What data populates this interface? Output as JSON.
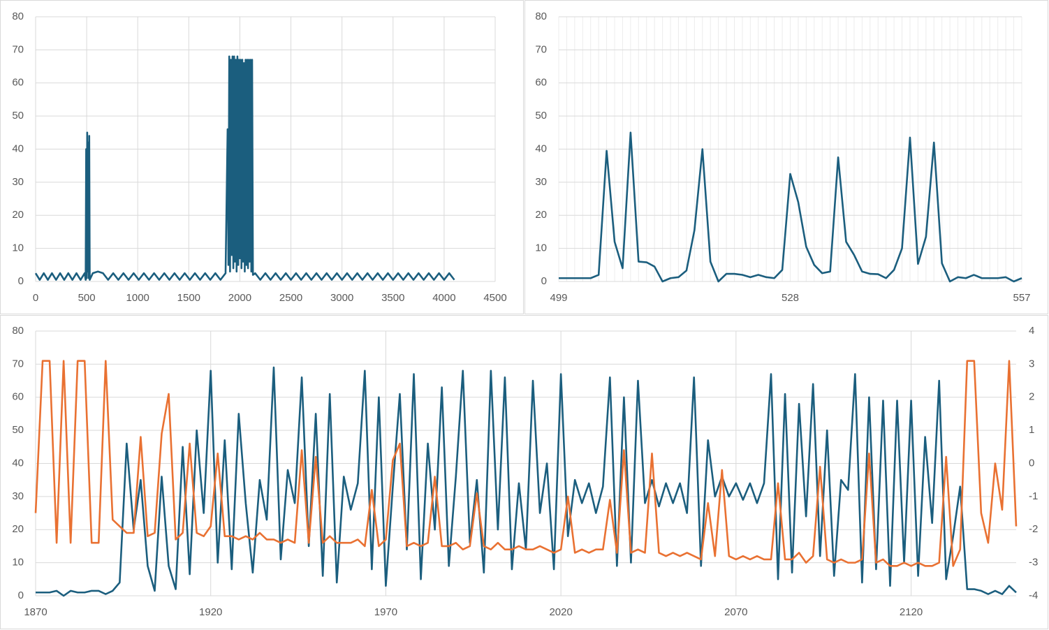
{
  "chart_data": [
    {
      "type": "line",
      "x": [
        0,
        40,
        80,
        120,
        160,
        200,
        240,
        280,
        320,
        360,
        400,
        440,
        480,
        490,
        495,
        500,
        505,
        510,
        515,
        520,
        525,
        530,
        560,
        610,
        660,
        710,
        760,
        810,
        860,
        910,
        960,
        1010,
        1060,
        1110,
        1160,
        1210,
        1260,
        1310,
        1360,
        1410,
        1460,
        1510,
        1560,
        1610,
        1660,
        1710,
        1760,
        1810,
        1860,
        1880,
        1888,
        1896,
        1904,
        1912,
        1920,
        1928,
        1936,
        1944,
        1952,
        1960,
        1968,
        1976,
        1984,
        1992,
        2000,
        2008,
        2016,
        2024,
        2032,
        2040,
        2048,
        2056,
        2064,
        2072,
        2080,
        2088,
        2096,
        2104,
        2112,
        2120,
        2128,
        2150,
        2200,
        2250,
        2300,
        2350,
        2400,
        2450,
        2500,
        2550,
        2600,
        2650,
        2700,
        2750,
        2800,
        2850,
        2900,
        2950,
        3000,
        3050,
        3100,
        3150,
        3200,
        3250,
        3300,
        3350,
        3400,
        3450,
        3500,
        3550,
        3600,
        3650,
        3700,
        3750,
        3800,
        3850,
        3900,
        3950,
        4000,
        4050,
        4100
      ],
      "series": [
        {
          "color": "#1b5e7e",
          "values": [
            2.5,
            0.5,
            2.5,
            0.5,
            2.5,
            0.5,
            2.5,
            0.5,
            2.5,
            0.5,
            2.5,
            0.5,
            2.5,
            0.5,
            40,
            1,
            45,
            3,
            42,
            1,
            44,
            0.5,
            2.5,
            3,
            2.5,
            0.5,
            2.5,
            0.5,
            2.5,
            0.5,
            2.5,
            0.5,
            2.5,
            0.5,
            2.5,
            0.5,
            2.5,
            0.5,
            2.5,
            0.5,
            2.5,
            0.5,
            2.5,
            0.5,
            2.5,
            0.5,
            2.5,
            0.5,
            2.5,
            46,
            5,
            68,
            3,
            67,
            8,
            68,
            4,
            68,
            6,
            67,
            3,
            68,
            5,
            67,
            7,
            67,
            4,
            67,
            6,
            66,
            3,
            67,
            5,
            67,
            4,
            67,
            6,
            67,
            3,
            67,
            2,
            2.5,
            0.5,
            2.5,
            0.5,
            2.5,
            0.5,
            2.5,
            0.5,
            2.5,
            0.5,
            2.5,
            0.5,
            2.5,
            0.5,
            2.5,
            0.5,
            2.5,
            0.5,
            2.5,
            0.5,
            2.5,
            0.5,
            2.5,
            0.5,
            2.5,
            0.5,
            2.5,
            0.5,
            2.5,
            0.5,
            2.5,
            0.5,
            2.5,
            0.5,
            2.5,
            0.5,
            2.5,
            0.5,
            2.5,
            0.5
          ]
        }
      ],
      "xlim": [
        0,
        4500
      ],
      "xticks": [
        0,
        500,
        1000,
        1500,
        2000,
        2500,
        3000,
        3500,
        4000,
        4500
      ],
      "ylim": [
        0,
        80
      ],
      "yticks": [
        0,
        10,
        20,
        30,
        40,
        50,
        60,
        70,
        80
      ],
      "grid": true
    },
    {
      "type": "line",
      "x": [
        499,
        500,
        501,
        502,
        503,
        504,
        505,
        506,
        507,
        508,
        509,
        510,
        511,
        512,
        513,
        514,
        515,
        516,
        517,
        518,
        519,
        520,
        521,
        522,
        523,
        524,
        525,
        526,
        527,
        528,
        529,
        530,
        531,
        532,
        533,
        534,
        535,
        536,
        537,
        538,
        539,
        540,
        541,
        542,
        543,
        544,
        545,
        546,
        547,
        548,
        549,
        550,
        551,
        552,
        553,
        554,
        555,
        556,
        557
      ],
      "series": [
        {
          "color": "#1b5e7e",
          "values": [
            1,
            1,
            1,
            1,
            1,
            2,
            39.5,
            12,
            4,
            45,
            6,
            5.8,
            4.5,
            0,
            1,
            1.3,
            3.3,
            15.5,
            40,
            6,
            0,
            2.3,
            2.3,
            2,
            1.3,
            2,
            1.3,
            1,
            3.5,
            32.5,
            24,
            10.5,
            5,
            2.5,
            3,
            37.5,
            12,
            8,
            3,
            2.3,
            2.2,
            1,
            3.5,
            10,
            43.5,
            5.3,
            13.5,
            42,
            5.5,
            0,
            1.3,
            1,
            2,
            1,
            1,
            1,
            1.3,
            0,
            1
          ]
        }
      ],
      "xlim": [
        499,
        557
      ],
      "xticks": [
        499,
        528,
        557
      ],
      "ylim": [
        0,
        80
      ],
      "yticks": [
        0,
        10,
        20,
        30,
        40,
        50,
        60,
        70,
        80
      ],
      "grid": true
    },
    {
      "type": "line",
      "x": [
        1870,
        1872,
        1874,
        1876,
        1878,
        1880,
        1882,
        1884,
        1886,
        1888,
        1890,
        1892,
        1894,
        1896,
        1898,
        1900,
        1902,
        1904,
        1906,
        1908,
        1910,
        1912,
        1914,
        1916,
        1918,
        1920,
        1922,
        1924,
        1926,
        1928,
        1930,
        1932,
        1934,
        1936,
        1938,
        1940,
        1942,
        1944,
        1946,
        1948,
        1950,
        1952,
        1954,
        1956,
        1958,
        1960,
        1962,
        1964,
        1966,
        1968,
        1970,
        1972,
        1974,
        1976,
        1978,
        1980,
        1982,
        1984,
        1986,
        1988,
        1990,
        1992,
        1994,
        1996,
        1998,
        2000,
        2002,
        2004,
        2006,
        2008,
        2010,
        2012,
        2014,
        2016,
        2018,
        2020,
        2022,
        2024,
        2026,
        2028,
        2030,
        2032,
        2034,
        2036,
        2038,
        2040,
        2042,
        2044,
        2046,
        2048,
        2050,
        2052,
        2054,
        2056,
        2058,
        2060,
        2062,
        2064,
        2066,
        2068,
        2070,
        2072,
        2074,
        2076,
        2078,
        2080,
        2082,
        2084,
        2086,
        2088,
        2090,
        2092,
        2094,
        2096,
        2098,
        2100,
        2102,
        2104,
        2106,
        2108,
        2110,
        2112,
        2114,
        2116,
        2118,
        2120,
        2122,
        2124,
        2126,
        2128,
        2130,
        2132,
        2134,
        2136,
        2138,
        2140,
        2142,
        2144,
        2146,
        2148,
        2150
      ],
      "series": [
        {
          "color": "#1b5e7e",
          "values": [
            1,
            1,
            1,
            1.5,
            0,
            1.5,
            1,
            1,
            1.5,
            1.5,
            0.5,
            1.5,
            4,
            46,
            20,
            35,
            9,
            1.5,
            36,
            9,
            2,
            45,
            6.5,
            50,
            25,
            68,
            10,
            47,
            8,
            55,
            28,
            7,
            35,
            23,
            69,
            11,
            38,
            28,
            66,
            15,
            55,
            6,
            61,
            4,
            36,
            26,
            34,
            68,
            8,
            60,
            3,
            33,
            61,
            14,
            67,
            5,
            46,
            20,
            63,
            9,
            36,
            68,
            16,
            35,
            7,
            68,
            20,
            66,
            8,
            34,
            14,
            65,
            25,
            40,
            8,
            67,
            18,
            35,
            28,
            34,
            25,
            33,
            66,
            9,
            60,
            10,
            65,
            28,
            35,
            27,
            34,
            28,
            34,
            25,
            66,
            9,
            47,
            30,
            36,
            30,
            34,
            29,
            34,
            28,
            34,
            67,
            5,
            61,
            7,
            58,
            24,
            64,
            12,
            50,
            6,
            35,
            32,
            67,
            4,
            60,
            8,
            59,
            3,
            59,
            10,
            59,
            6,
            48,
            22,
            65,
            5,
            18,
            33,
            2,
            2,
            1.5,
            0.5,
            1.5,
            0.5,
            3,
            1
          ]
        },
        {
          "color": "#e97132",
          "axis": "y2",
          "values": [
            -1.5,
            3.1,
            3.1,
            -2.4,
            3.1,
            -2.4,
            3.1,
            3.1,
            -2.4,
            -2.4,
            3.1,
            -1.7,
            -1.9,
            -2.1,
            -2.1,
            0.8,
            -2.2,
            -2.1,
            0.9,
            2.1,
            -2.3,
            -2.1,
            0.6,
            -2.1,
            -2.2,
            -1.9,
            0.3,
            -2.2,
            -2.2,
            -2.3,
            -2.2,
            -2.3,
            -2.1,
            -2.3,
            -2.3,
            -2.4,
            -2.3,
            -2.4,
            0.4,
            -2.4,
            0.2,
            -2.4,
            -2.2,
            -2.4,
            -2.4,
            -2.4,
            -2.3,
            -2.5,
            -0.8,
            -2.5,
            -2.3,
            0.1,
            0.6,
            -2.5,
            -2.4,
            -2.5,
            -2.4,
            -0.4,
            -2.5,
            -2.5,
            -2.4,
            -2.6,
            -2.5,
            -0.9,
            -2.5,
            -2.6,
            -2.4,
            -2.6,
            -2.6,
            -2.5,
            -2.6,
            -2.6,
            -2.5,
            -2.6,
            -2.7,
            -2.6,
            -1.0,
            -2.7,
            -2.6,
            -2.7,
            -2.6,
            -2.6,
            -1.1,
            -2.7,
            0.4,
            -2.7,
            -2.6,
            -2.7,
            0.3,
            -2.7,
            -2.8,
            -2.7,
            -2.8,
            -2.7,
            -2.8,
            -2.9,
            -1.2,
            -2.8,
            -0.2,
            -2.8,
            -2.9,
            -2.8,
            -2.9,
            -2.8,
            -2.9,
            -2.9,
            -0.6,
            -2.9,
            -2.9,
            -2.7,
            -3.0,
            -2.8,
            -0.1,
            -2.9,
            -3.0,
            -2.9,
            -3.0,
            -3.0,
            -2.9,
            0.3,
            -3.0,
            -2.9,
            -3.1,
            -3.1,
            -3.0,
            -3.1,
            -3.0,
            -3.1,
            -3.1,
            -3.0,
            0.2,
            -3.1,
            -2.6,
            3.1,
            3.1,
            -1.5,
            -2.4,
            0,
            -1.4,
            3.1,
            -1.9
          ]
        }
      ],
      "xlim": [
        1870,
        2150
      ],
      "xticks": [
        1870,
        1920,
        1970,
        2020,
        2070,
        2120
      ],
      "ylim": [
        0,
        80
      ],
      "yticks": [
        0,
        10,
        20,
        30,
        40,
        50,
        60,
        70,
        80
      ],
      "y2lim": [
        -4,
        4
      ],
      "y2ticks": [
        -4,
        -3,
        -2,
        -1,
        0,
        1,
        2,
        3,
        4
      ],
      "grid": true
    }
  ]
}
